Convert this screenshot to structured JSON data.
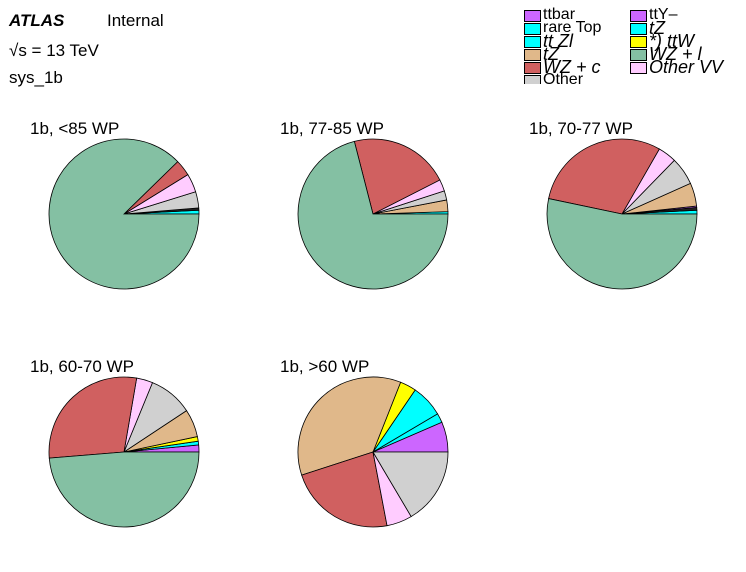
{
  "header": {
    "atlas": "ATLAS",
    "internal": "Internal",
    "energy": "√s = 13 TeV",
    "sys": "sys_1b"
  },
  "legend": {
    "items": [
      {
        "label": "ttbar",
        "color": "#cc66ff"
      },
      {
        "label": "rare Top",
        "color": "#00ffff"
      },
      {
        "label": "tt  Zl",
        "color": "#00ffff"
      },
      {
        "label": "tZ",
        "color": "#e0b88a"
      },
      {
        "label": "WZ + c",
        "color": "#d06060"
      },
      {
        "label": "Other",
        "color": "#d0d0d0"
      },
      {
        "label": "ttY–",
        "color": "#cc66ff"
      },
      {
        "label": "tZ",
        "color": "#00ffff"
      },
      {
        "label": "*) ttW",
        "color": "#ffff00"
      },
      {
        "label": "WZ + l",
        "color": "#84c0a3"
      },
      {
        "label": "Other  VV",
        "color": "#ffccff"
      }
    ]
  },
  "chart_data": [
    {
      "type": "pie",
      "title": "1b, <85 WP",
      "slices": [
        {
          "value": 0.8,
          "color": "#00ffff"
        },
        {
          "value": 0.5,
          "color": "#202020"
        },
        {
          "value": 3.5,
          "color": "#d0d0d0"
        },
        {
          "value": 4.0,
          "color": "#ffccff"
        },
        {
          "value": 3.5,
          "color": "#d06060"
        },
        {
          "value": 87.7,
          "color": "#84c0a3"
        }
      ]
    },
    {
      "type": "pie",
      "title": "1b, 77-85 WP",
      "slices": [
        {
          "value": 0.5,
          "color": "#00ffff"
        },
        {
          "value": 2.5,
          "color": "#e0b88a"
        },
        {
          "value": 2.0,
          "color": "#d0d0d0"
        },
        {
          "value": 2.5,
          "color": "#ffccff"
        },
        {
          "value": 21.5,
          "color": "#d06060"
        },
        {
          "value": 71.0,
          "color": "#84c0a3"
        }
      ]
    },
    {
      "type": "pie",
      "title": "1b, 70-77 WP",
      "slices": [
        {
          "value": 0.8,
          "color": "#00ffff"
        },
        {
          "value": 0.6,
          "color": "#202020"
        },
        {
          "value": 0.3,
          "color": "#cc66ff"
        },
        {
          "value": 5.0,
          "color": "#e0b88a"
        },
        {
          "value": 6.0,
          "color": "#d0d0d0"
        },
        {
          "value": 4.0,
          "color": "#ffccff"
        },
        {
          "value": 30.0,
          "color": "#d06060"
        },
        {
          "value": 53.3,
          "color": "#84c0a3"
        }
      ]
    },
    {
      "type": "pie",
      "title": "1b, 60-70 WP",
      "slices": [
        {
          "value": 1.5,
          "color": "#cc66ff"
        },
        {
          "value": 0.8,
          "color": "#00ffff"
        },
        {
          "value": 1.0,
          "color": "#ffff00"
        },
        {
          "value": 6.0,
          "color": "#e0b88a"
        },
        {
          "value": 9.5,
          "color": "#d0d0d0"
        },
        {
          "value": 3.5,
          "color": "#ffccff"
        },
        {
          "value": 29.0,
          "color": "#d06060"
        },
        {
          "value": 48.7,
          "color": "#84c0a3"
        }
      ]
    },
    {
      "type": "pie",
      "title": "1b, >60 WP",
      "slices": [
        {
          "value": 6.5,
          "color": "#cc66ff"
        },
        {
          "value": 2.0,
          "color": "#00ffff"
        },
        {
          "value": 7.0,
          "color": "#00ffff"
        },
        {
          "value": 3.5,
          "color": "#ffff00"
        },
        {
          "value": 36.0,
          "color": "#e0b88a"
        },
        {
          "value": 23.0,
          "color": "#d06060"
        },
        {
          "value": 5.5,
          "color": "#ffccff"
        },
        {
          "value": 16.5,
          "color": "#d0d0d0"
        }
      ]
    }
  ]
}
